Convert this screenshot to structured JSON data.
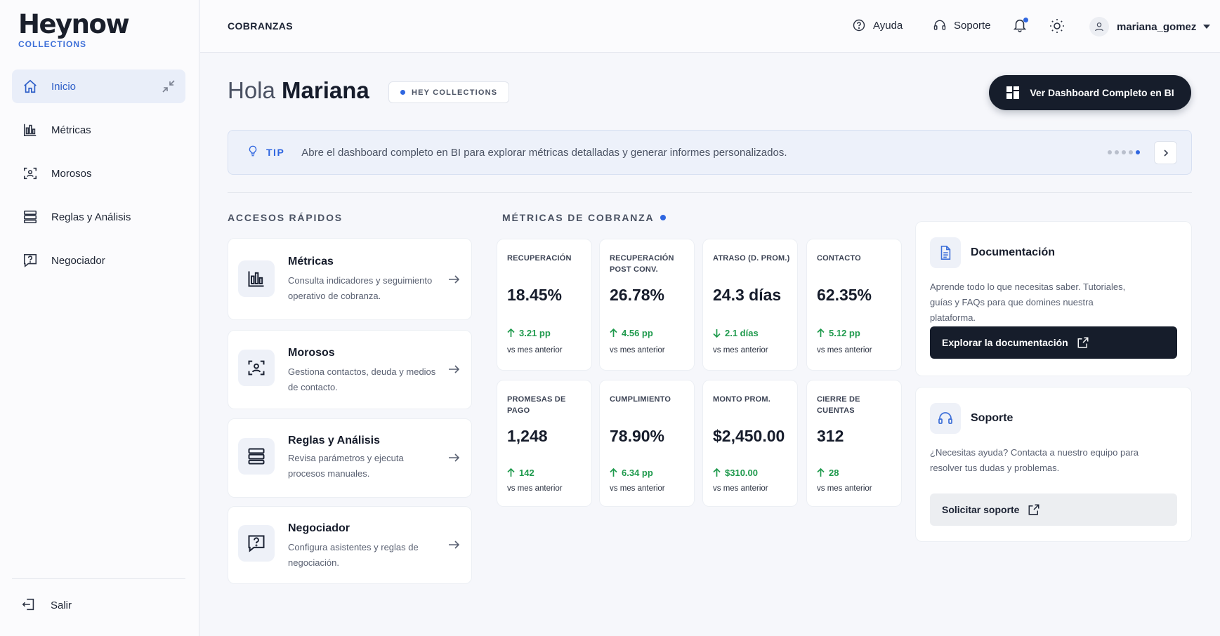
{
  "brand": {
    "name": "Heynow",
    "sub": "COLLECTIONS"
  },
  "sidebar": {
    "items": [
      {
        "label": "Inicio",
        "icon": "home-icon",
        "active": true
      },
      {
        "label": "Métricas",
        "icon": "bar-chart-icon"
      },
      {
        "label": "Morosos",
        "icon": "scan-user-icon"
      },
      {
        "label": "Reglas y Análisis",
        "icon": "server-stack-icon"
      },
      {
        "label": "Negociador",
        "icon": "question-message-icon"
      }
    ],
    "logout": "Salir"
  },
  "header": {
    "title": "COBRANZAS",
    "help": "Ayuda",
    "support": "Soporte",
    "username": "mariana_gomez"
  },
  "greeting": {
    "prefix": "Hola",
    "name": "Mariana"
  },
  "badge": "HEY COLLECTIONS",
  "bi_button": "Ver Dashboard Completo en BI",
  "tip": {
    "label": "TIP",
    "text": "Abre el dashboard completo en BI para explorar métricas detalladas y generar informes personalizados.",
    "pages": 5,
    "active_page": 5
  },
  "quick_access": {
    "title": "ACCESOS RÁPIDOS",
    "items": [
      {
        "title": "Métricas",
        "desc": "Consulta indicadores y seguimiento operativo de cobranza.",
        "icon": "bar-chart-icon"
      },
      {
        "title": "Morosos",
        "desc": "Gestiona contactos, deuda y medios de contacto.",
        "icon": "scan-user-icon"
      },
      {
        "title": "Reglas y Análisis",
        "desc": "Revisa parámetros y ejecuta procesos manuales.",
        "icon": "server-stack-icon"
      },
      {
        "title": "Negociador",
        "desc": "Configura asistentes y reglas de negociación.",
        "icon": "question-message-icon"
      }
    ]
  },
  "metrics": {
    "title": "MÉTRICAS DE COBRANZA",
    "cards": [
      {
        "label": "RECUPERACIÓN",
        "value": "18.45%",
        "delta": "3.21 pp",
        "direction": "up",
        "sub": "vs mes anterior"
      },
      {
        "label": "RECUPERACIÓN POST CONV.",
        "value": "26.78%",
        "delta": "4.56 pp",
        "direction": "up",
        "sub": "vs mes anterior"
      },
      {
        "label": "ATRASO (D. PROM.)",
        "value": "24.3 días",
        "delta": "2.1 días",
        "direction": "down",
        "sub": "vs mes anterior"
      },
      {
        "label": "CONTACTO",
        "value": "62.35%",
        "delta": "5.12 pp",
        "direction": "up",
        "sub": "vs mes anterior"
      },
      {
        "label": "PROMESAS DE PAGO",
        "value": "1,248",
        "delta": "142",
        "direction": "up",
        "sub": "vs mes anterior"
      },
      {
        "label": "CUMPLIMIENTO",
        "value": "78.90%",
        "delta": "6.34 pp",
        "direction": "up",
        "sub": "vs mes anterior"
      },
      {
        "label": "MONTO PROM.",
        "value": "$2,450.00",
        "delta": "$310.00",
        "direction": "up",
        "sub": "vs mes anterior"
      },
      {
        "label": "CIERRE DE CUENTAS",
        "value": "312",
        "delta": "28",
        "direction": "up",
        "sub": "vs mes anterior"
      }
    ]
  },
  "documentation": {
    "title": "Documentación",
    "desc": "Aprende todo lo que necesitas saber. Tutoriales, guías y FAQs para que domines nuestra plataforma.",
    "button": "Explorar la documentación"
  },
  "support": {
    "title": "Soporte",
    "desc": "¿Necesitas ayuda? Contacta a nuestro equipo para resolver tus dudas y problemas.",
    "button": "Solicitar soporte"
  },
  "colors": {
    "accent": "#2f66e0",
    "dark": "#161d2b",
    "positive": "#1f9a4d"
  }
}
